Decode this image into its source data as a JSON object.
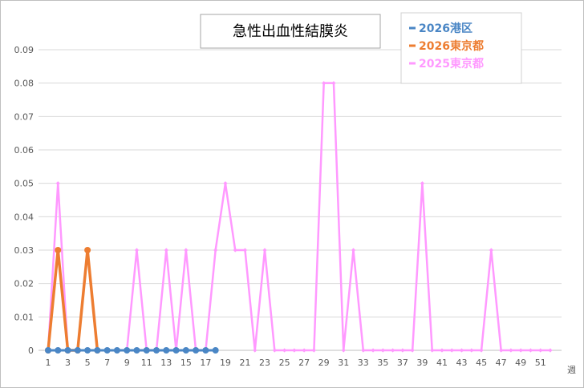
{
  "chart_data": {
    "type": "line",
    "title": "急性出血性結膜炎",
    "xlabel": "週",
    "ylabel": "",
    "ylim": [
      0,
      0.09
    ],
    "yticks": [
      "0",
      "0.01",
      "0.02",
      "0.03",
      "0.04",
      "0.05",
      "0.06",
      "0.07",
      "0.08",
      "0.09"
    ],
    "xticks": [
      "1",
      "3",
      "5",
      "7",
      "9",
      "11",
      "13",
      "15",
      "17",
      "19",
      "21",
      "23",
      "25",
      "27",
      "29",
      "31",
      "33",
      "35",
      "37",
      "39",
      "41",
      "43",
      "45",
      "47",
      "49",
      "51"
    ],
    "grid": true,
    "legend_position": "top-right",
    "series": [
      {
        "name": "2026港区",
        "color": "#4a86c5",
        "marker": "circle",
        "x": [
          1,
          2,
          3,
          4,
          5,
          6,
          7,
          8,
          9,
          10,
          11,
          12,
          13,
          14,
          15,
          16,
          17,
          18
        ],
        "values": [
          0,
          0,
          0,
          0,
          0,
          0,
          0,
          0,
          0,
          0,
          0,
          0,
          0,
          0,
          0,
          0,
          0,
          0
        ]
      },
      {
        "name": "2026東京都",
        "color": "#ed7d31",
        "marker": "circle",
        "x": [
          1,
          2,
          3,
          4,
          5,
          6
        ],
        "values": [
          0,
          0.03,
          0,
          0,
          0.03,
          0
        ]
      },
      {
        "name": "2025東京都",
        "color": "#ff99ff",
        "marker": "diamond",
        "x": [
          1,
          2,
          3,
          4,
          5,
          6,
          7,
          8,
          9,
          10,
          11,
          12,
          13,
          14,
          15,
          16,
          17,
          18,
          19,
          20,
          21,
          22,
          23,
          24,
          25,
          26,
          27,
          28,
          29,
          30,
          31,
          32,
          33,
          34,
          35,
          36,
          37,
          38,
          39,
          40,
          41,
          42,
          43,
          44,
          45,
          46,
          47,
          48,
          49,
          50,
          51,
          52
        ],
        "values": [
          0,
          0.05,
          0,
          0,
          0,
          0,
          0,
          0,
          0,
          0.03,
          0,
          0,
          0.03,
          0,
          0.03,
          0,
          0,
          0.03,
          0.05,
          0.03,
          0.03,
          0,
          0.03,
          0,
          0,
          0,
          0,
          0,
          0.08,
          0.08,
          0,
          0.03,
          0,
          0,
          0,
          0,
          0,
          0,
          0.05,
          0,
          0,
          0,
          0,
          0,
          0,
          0.03,
          0,
          0,
          0,
          0,
          0,
          0
        ]
      }
    ]
  }
}
